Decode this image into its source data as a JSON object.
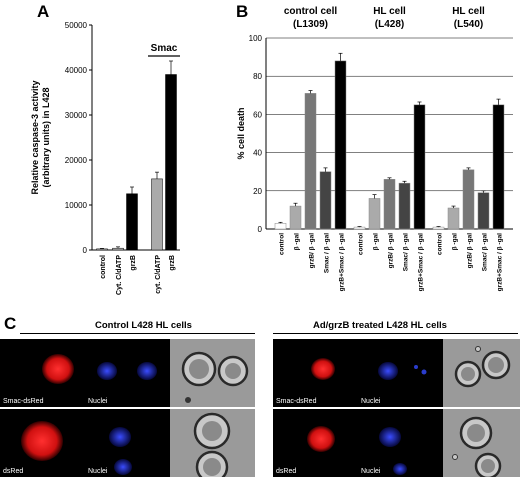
{
  "panels": {
    "A": {
      "letter": "A",
      "chart_data": {
        "type": "bar",
        "ylabel": "Relative caspase-3 activity\n(arbitrary units) in L428",
        "ylim": [
          0,
          50000
        ],
        "yticks": [
          0,
          10000,
          20000,
          30000,
          40000,
          50000
        ],
        "bracket_label": "Smac",
        "categories": [
          "control",
          "Cyt. C/dATP",
          "grzB",
          "cyt. C/dATP",
          "grzB"
        ],
        "values": [
          250,
          400,
          12500,
          15800,
          39000
        ],
        "errors": [
          100,
          300,
          1500,
          1500,
          3000
        ],
        "colors": [
          "#bbbbbb",
          "#bbbbbb",
          "#000000",
          "#aaaaaa",
          "#000000"
        ]
      }
    },
    "B": {
      "letter": "B",
      "chart_data": {
        "type": "bar",
        "ylabel": "% cell death",
        "ylim": [
          0,
          100
        ],
        "yticks": [
          0,
          20,
          40,
          60,
          80,
          100
        ],
        "groups": [
          {
            "title_line1": "control cell",
            "title_line2": "(L1309)",
            "categories": [
              "control",
              "β -gal",
              "grzB/ β -gal",
              "Smac / β -gal",
              "grzB+Smac / β -gal"
            ],
            "values": [
              3,
              12,
              71,
              30,
              88
            ],
            "errors": [
              0.5,
              1.5,
              1.5,
              2,
              4
            ]
          },
          {
            "title_line1": "HL cell",
            "title_line2": "(L428)",
            "categories": [
              "control",
              "β -gal",
              "grzB/ β -gal",
              "Smac/ β -gal",
              "grzB+Smac / β -gal"
            ],
            "values": [
              1,
              16,
              26,
              24,
              65
            ],
            "errors": [
              0.3,
              2,
              0.8,
              1,
              1.5
            ]
          },
          {
            "title_line1": "HL cell",
            "title_line2": "(L540)",
            "categories": [
              "control",
              "β -gal",
              "grzB/ β -gal",
              "Smac/ β -gal",
              "grzB+Smac / β -gal"
            ],
            "values": [
              1,
              11,
              31,
              19,
              65
            ],
            "errors": [
              0.3,
              1,
              1,
              1,
              3
            ]
          }
        ],
        "colors": [
          "#ffffff",
          "#aaaaaa",
          "#777777",
          "#444444",
          "#000000"
        ]
      }
    },
    "C": {
      "letter": "C",
      "left_title": "Control L428 HL cells",
      "right_title": "Ad/grzB treated L428 HL cells",
      "images": {
        "left_top": [
          "Smac-dsRed",
          "Nuclei",
          ""
        ],
        "left_bottom": [
          "dsRed",
          "Nuclei",
          ""
        ],
        "right_top": [
          "Smac-dsRed",
          "Nuclei",
          ""
        ],
        "right_bottom": [
          "dsRed",
          "Nuclei",
          ""
        ]
      }
    }
  }
}
